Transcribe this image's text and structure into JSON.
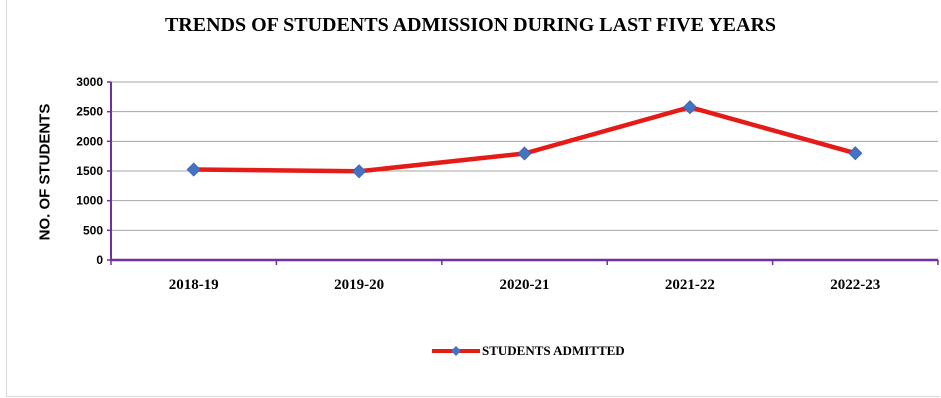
{
  "colors": {
    "line": "#e41b17",
    "marker": "#4472c4",
    "grid": "#a6a6a6",
    "axis": "#7030a0"
  },
  "chart_data": {
    "type": "line",
    "title": "TRENDS OF STUDENTS ADMISSION DURING LAST FIVE YEARS",
    "xlabel": "",
    "ylabel": "NO. OF STUDENTS",
    "categories": [
      "2018-19",
      "2019-20",
      "2020-21",
      "2021-22",
      "2022-23"
    ],
    "series": [
      {
        "name": "STUDENTS ADMITTED",
        "values": [
          1525,
          1495,
          1795,
          2575,
          1800
        ]
      }
    ],
    "ylim": [
      0,
      3000
    ],
    "yticks": [
      0,
      500,
      1000,
      1500,
      2000,
      2500,
      3000
    ],
    "grid": true,
    "legend": "bottom",
    "marker": "diamond"
  }
}
